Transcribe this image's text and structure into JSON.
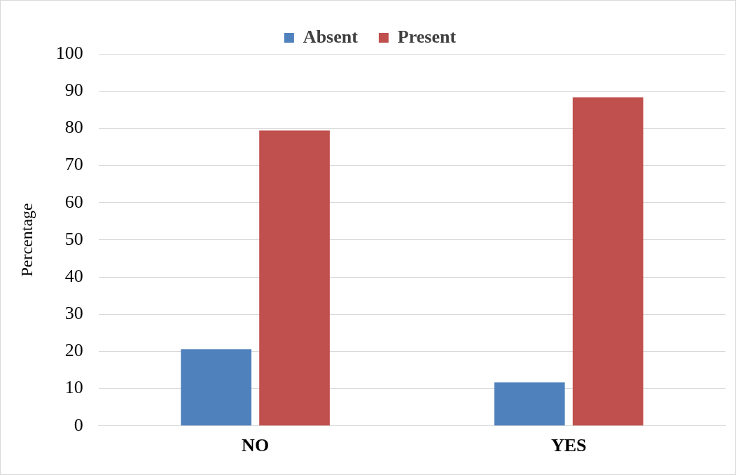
{
  "chart_data": {
    "type": "bar",
    "ylabel": "Percentage",
    "categories": [
      "NO",
      "YES"
    ],
    "series": [
      {
        "name": "Absent",
        "color": "#4f81bd",
        "values": [
          20.6,
          11.7
        ]
      },
      {
        "name": "Present",
        "color": "#c0504d",
        "values": [
          79.4,
          88.3
        ]
      }
    ],
    "ylim": [
      0,
      100
    ],
    "yticks": [
      0,
      10,
      20,
      30,
      40,
      50,
      60,
      70,
      80,
      90,
      100
    ],
    "grid": "y",
    "legend": "top"
  }
}
